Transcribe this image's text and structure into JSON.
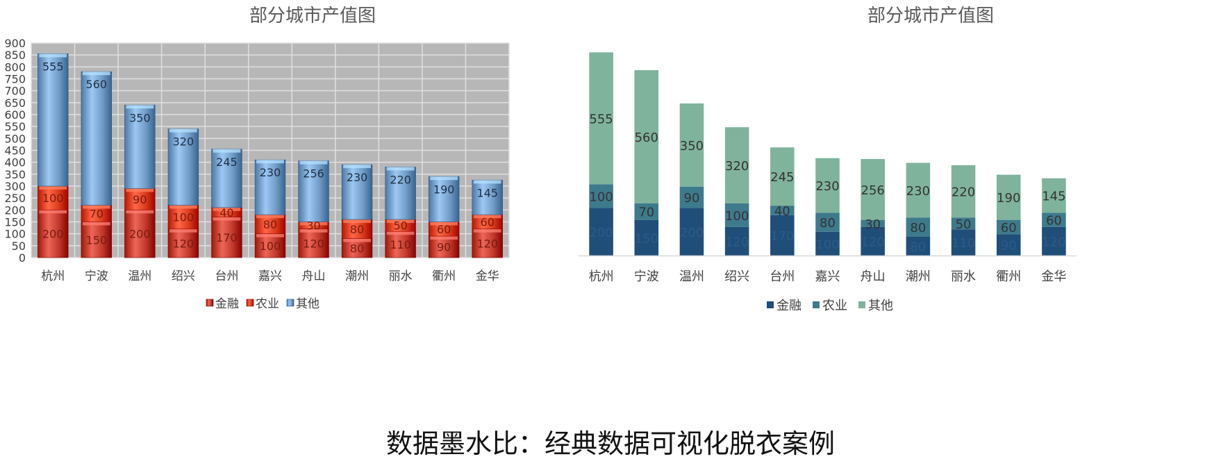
{
  "caption": "数据墨水比：经典数据可视化脱衣案例",
  "chart_data": [
    {
      "type": "bar",
      "stacked": true,
      "style": "3d-gradient",
      "title": "部分城市产值图",
      "categories": [
        "杭州",
        "宁波",
        "温州",
        "绍兴",
        "台州",
        "嘉兴",
        "舟山",
        "潮州",
        "丽水",
        "衢州",
        "金华"
      ],
      "series": [
        {
          "name": "金融",
          "values": [
            200,
            150,
            200,
            120,
            170,
            100,
            120,
            80,
            110,
            90,
            120
          ],
          "color": "#c0392b"
        },
        {
          "name": "农业",
          "values": [
            100,
            70,
            90,
            100,
            40,
            80,
            30,
            80,
            50,
            60,
            60
          ],
          "color": "#d93a1a"
        },
        {
          "name": "其他",
          "values": [
            555,
            560,
            350,
            320,
            245,
            230,
            256,
            230,
            220,
            190,
            145
          ],
          "color": "#6f9bc6"
        }
      ],
      "ylim": [
        0,
        900
      ],
      "yticks": [
        0,
        50,
        100,
        150,
        200,
        250,
        300,
        350,
        400,
        450,
        500,
        550,
        600,
        650,
        700,
        750,
        800,
        850,
        900
      ],
      "grid": true,
      "plot_background": "#b7b7b7",
      "legend_position": "bottom"
    },
    {
      "type": "bar",
      "stacked": true,
      "style": "flat",
      "title": "部分城市产值图",
      "categories": [
        "杭州",
        "宁波",
        "温州",
        "绍兴",
        "台州",
        "嘉兴",
        "舟山",
        "潮州",
        "丽水",
        "衢州",
        "金华"
      ],
      "series": [
        {
          "name": "金融",
          "values": [
            200,
            150,
            200,
            120,
            170,
            100,
            120,
            80,
            110,
            90,
            120
          ],
          "color": "#1f4e79"
        },
        {
          "name": "农业",
          "values": [
            100,
            70,
            90,
            100,
            40,
            80,
            30,
            80,
            50,
            60,
            60
          ],
          "color": "#3d7a8c"
        },
        {
          "name": "其他",
          "values": [
            555,
            560,
            350,
            320,
            245,
            230,
            256,
            230,
            220,
            190,
            145
          ],
          "color": "#7fb39c"
        }
      ],
      "ylim": [
        0,
        900
      ],
      "grid": false,
      "legend_position": "bottom"
    }
  ]
}
